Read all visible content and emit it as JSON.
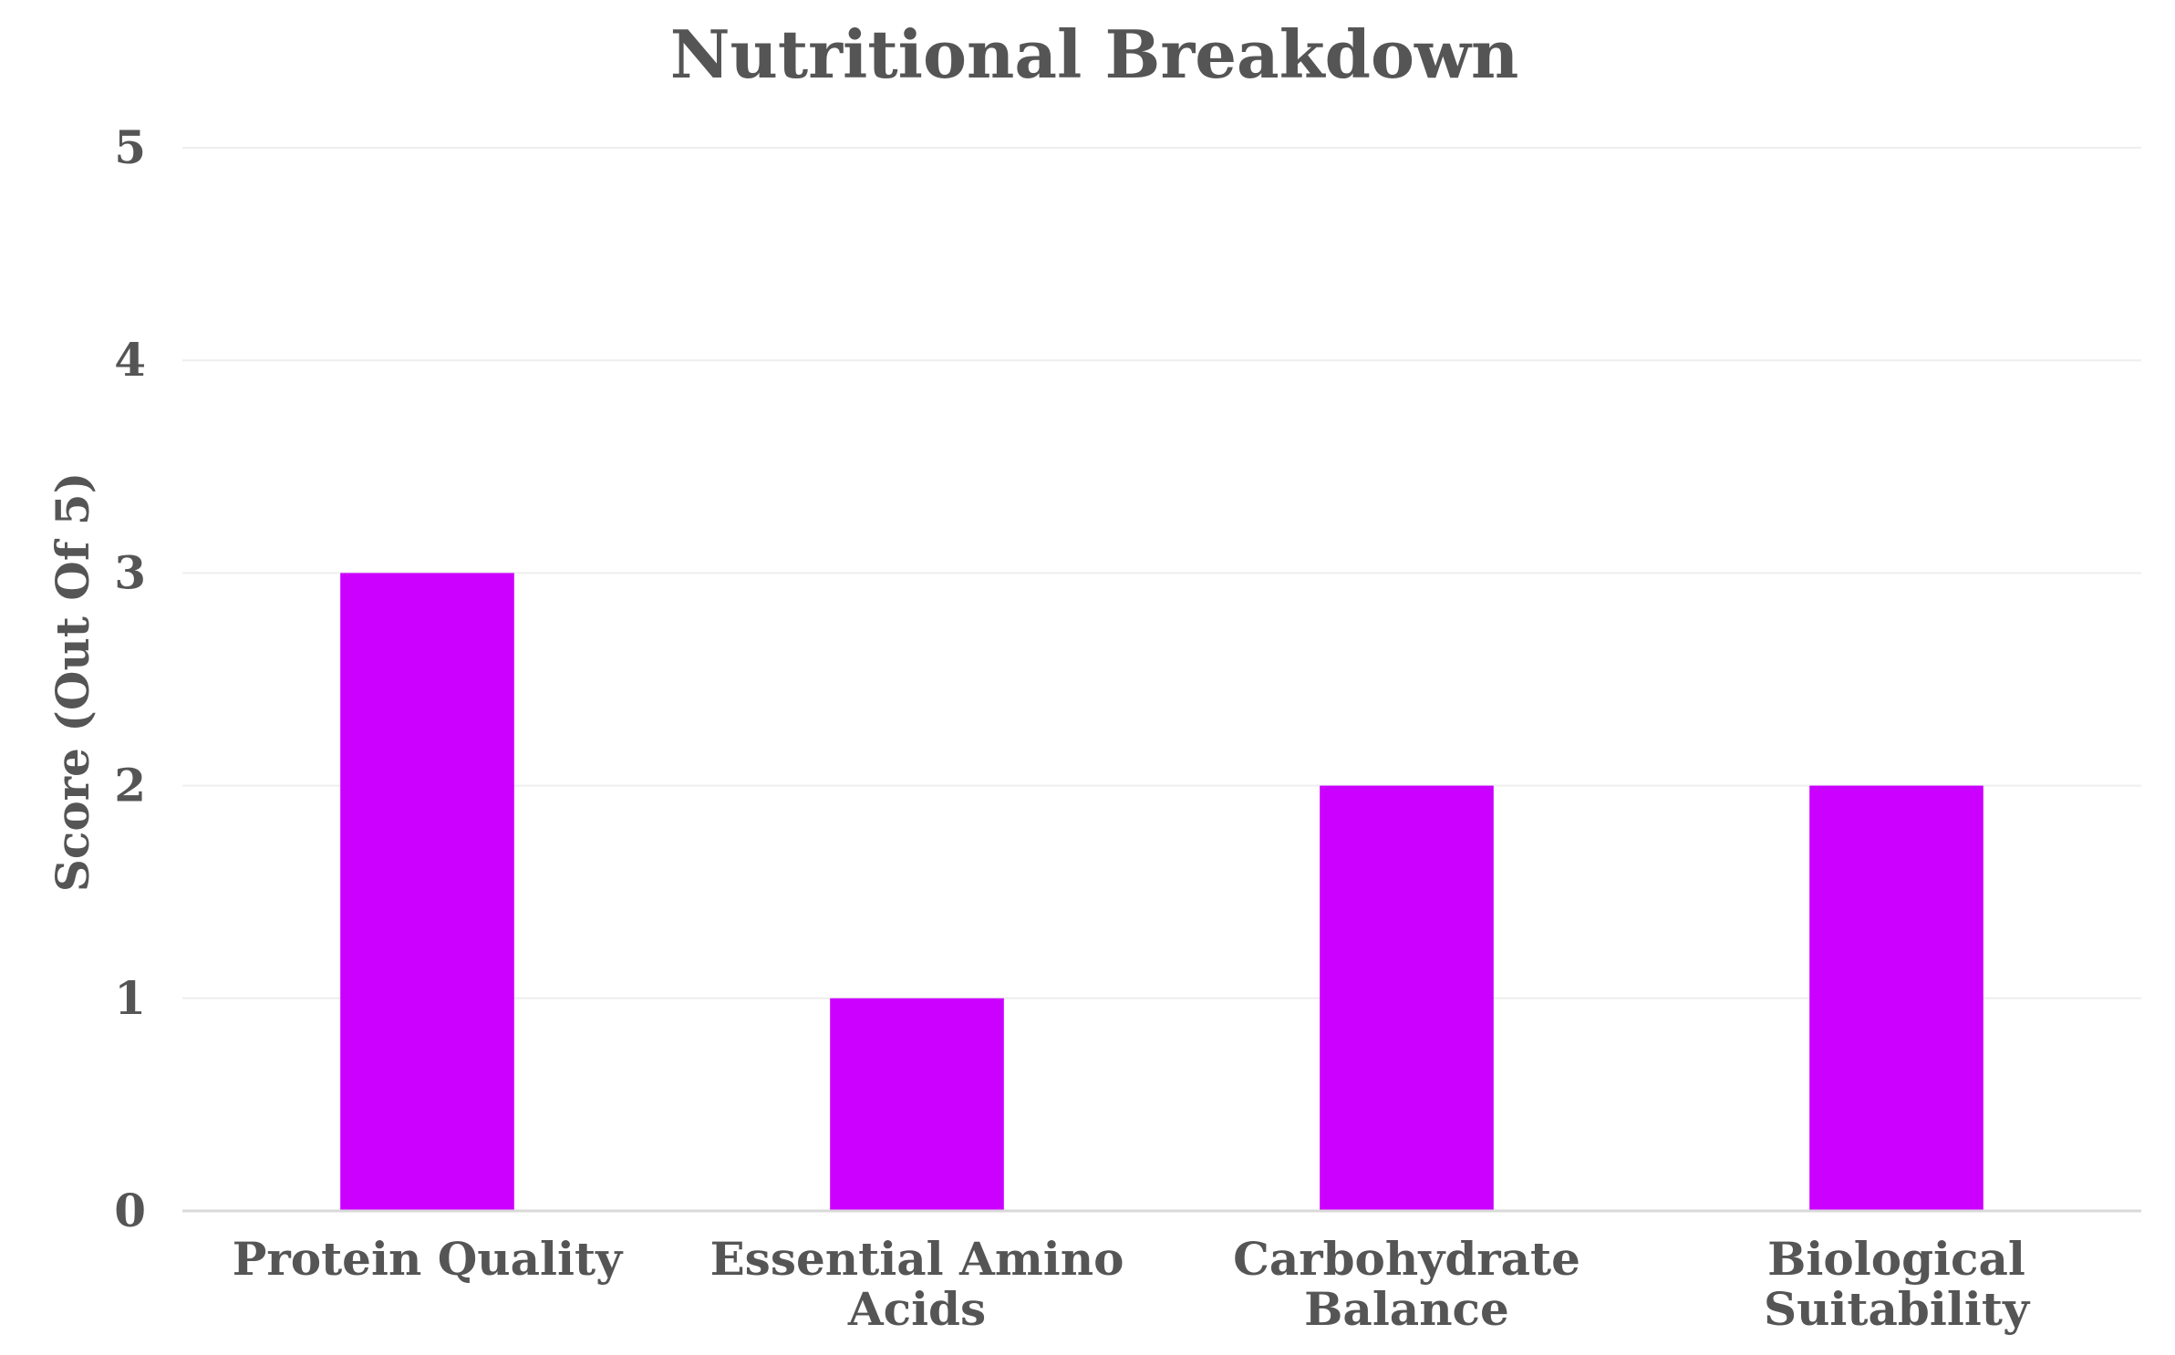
{
  "chart_data": {
    "type": "bar",
    "title": "Nutritional Breakdown",
    "xlabel": "",
    "ylabel": "Score (Out Of 5)",
    "categories": [
      "Protein Quality",
      "Essential Amino Acids",
      "Carbohydrate Balance",
      "Biological Suitability"
    ],
    "category_lines": [
      [
        "Protein Quality"
      ],
      [
        "Essential Amino",
        "Acids"
      ],
      [
        "Carbohydrate",
        "Balance"
      ],
      [
        "Biological",
        "Suitability"
      ]
    ],
    "values": [
      3,
      1,
      2,
      2
    ],
    "ylim": [
      0,
      5
    ],
    "yticks": [
      "0",
      "1",
      "2",
      "3",
      "4",
      "5"
    ],
    "grid": true,
    "colors": {
      "bar": "#CC00FF",
      "text": "#555555",
      "grid": "#EEEEEE",
      "axis": "#D9D9D9"
    }
  }
}
